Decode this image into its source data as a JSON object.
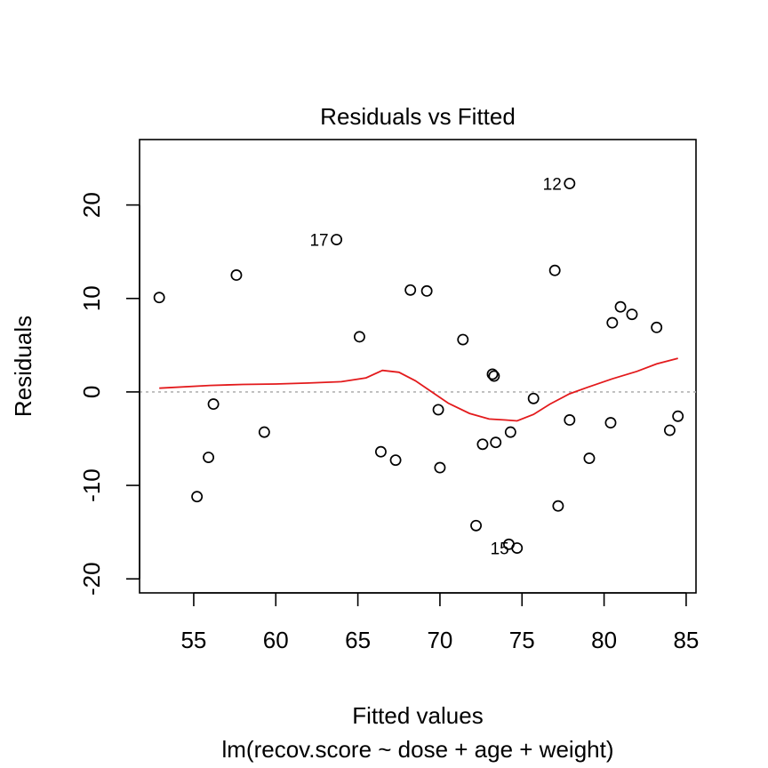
{
  "chart_data": {
    "type": "scatter",
    "title": "Residuals vs Fitted",
    "xlabel": "Fitted values",
    "subtitle": "lm(recov.score ~ dose + age + weight)",
    "ylabel": "Residuals",
    "xlim": [
      51.7,
      85.6
    ],
    "ylim": [
      -21.5,
      27
    ],
    "xticks": [
      55,
      60,
      65,
      70,
      75,
      80,
      85
    ],
    "yticks": [
      -20,
      -10,
      0,
      10,
      20
    ],
    "reference_line_y": 0,
    "points": [
      {
        "x": 52.9,
        "y": 10.1
      },
      {
        "x": 55.2,
        "y": -11.2
      },
      {
        "x": 55.9,
        "y": -7.0
      },
      {
        "x": 56.2,
        "y": -1.3
      },
      {
        "x": 57.6,
        "y": 12.5
      },
      {
        "x": 59.3,
        "y": -4.3
      },
      {
        "x": 63.7,
        "y": 16.3,
        "label": "17"
      },
      {
        "x": 65.1,
        "y": 5.9
      },
      {
        "x": 66.4,
        "y": -6.4
      },
      {
        "x": 67.3,
        "y": -7.3
      },
      {
        "x": 68.2,
        "y": 10.9
      },
      {
        "x": 69.2,
        "y": 10.8
      },
      {
        "x": 69.9,
        "y": -1.9
      },
      {
        "x": 70.0,
        "y": -8.1
      },
      {
        "x": 71.4,
        "y": 5.6
      },
      {
        "x": 72.2,
        "y": -14.3
      },
      {
        "x": 72.6,
        "y": -5.6
      },
      {
        "x": 73.2,
        "y": 1.9
      },
      {
        "x": 73.3,
        "y": 1.7
      },
      {
        "x": 73.4,
        "y": -5.4
      },
      {
        "x": 74.2,
        "y": -16.3
      },
      {
        "x": 74.3,
        "y": -4.3
      },
      {
        "x": 74.7,
        "y": -16.7,
        "label": "15"
      },
      {
        "x": 75.7,
        "y": -0.7
      },
      {
        "x": 77.0,
        "y": 13.0
      },
      {
        "x": 77.2,
        "y": -12.2
      },
      {
        "x": 77.9,
        "y": -3.0
      },
      {
        "x": 77.9,
        "y": 22.3,
        "label": "12"
      },
      {
        "x": 79.1,
        "y": -7.1
      },
      {
        "x": 80.4,
        "y": -3.3
      },
      {
        "x": 80.5,
        "y": 7.4
      },
      {
        "x": 81.0,
        "y": 9.1
      },
      {
        "x": 81.7,
        "y": 8.3
      },
      {
        "x": 83.2,
        "y": 6.9
      },
      {
        "x": 84.0,
        "y": -4.1
      },
      {
        "x": 84.5,
        "y": -2.6
      }
    ],
    "smooth_line": {
      "color": "#e31a1c",
      "x": [
        52.9,
        56.0,
        58.0,
        60.0,
        62.0,
        64.0,
        65.5,
        66.5,
        67.5,
        68.5,
        69.5,
        70.5,
        71.8,
        73.0,
        74.0,
        74.7,
        75.7,
        76.7,
        77.9,
        79.0,
        80.5,
        82.0,
        83.2,
        84.5
      ],
      "y": [
        0.4,
        0.7,
        0.8,
        0.85,
        0.95,
        1.1,
        1.5,
        2.3,
        2.1,
        1.2,
        0.0,
        -1.2,
        -2.3,
        -2.9,
        -3.0,
        -3.1,
        -2.4,
        -1.3,
        -0.2,
        0.5,
        1.4,
        2.2,
        3.0,
        3.6
      ]
    },
    "grid": false,
    "legend": "none",
    "point_style": "open-circle"
  }
}
